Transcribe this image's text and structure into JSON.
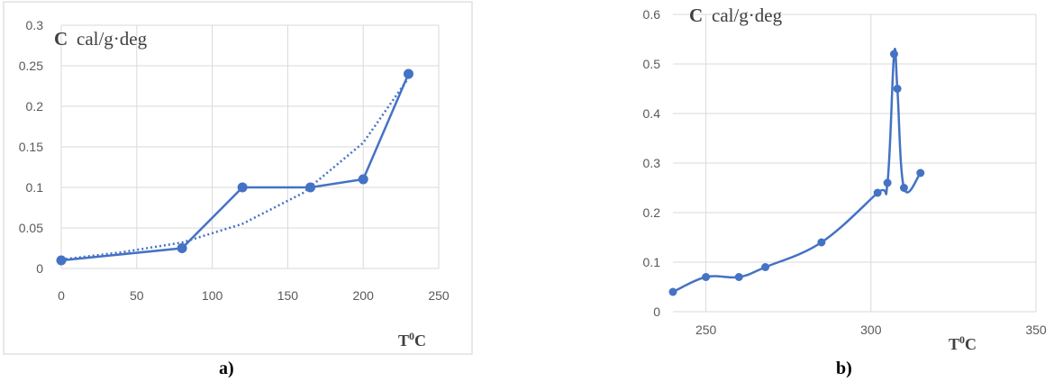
{
  "chart_data": [
    {
      "type": "line",
      "panel": "a)",
      "ylabel_symbol": "C",
      "ylabel_unit": "cal/g·deg",
      "xlabel_base": "T",
      "xlabel_sup": "0",
      "xlabel_unit": "C",
      "xlim": [
        0,
        250
      ],
      "ylim": [
        0,
        0.3
      ],
      "xticks": [
        "0",
        "50",
        "100",
        "150",
        "200",
        "250"
      ],
      "yticks": [
        "0",
        "0.05",
        "0.1",
        "0.15",
        "0.2",
        "0.25",
        "0.3"
      ],
      "grid": true,
      "series": [
        {
          "style": "solid-markers",
          "color": "#4472c4",
          "x": [
            0,
            80,
            120,
            165,
            200,
            230
          ],
          "y": [
            0.01,
            0.025,
            0.1,
            0.1,
            0.11,
            0.24
          ]
        },
        {
          "style": "dotted-trendline",
          "color": "#4472c4",
          "x": [
            0,
            40,
            80,
            120,
            160,
            200,
            230
          ],
          "y": [
            0.011,
            0.02,
            0.032,
            0.055,
            0.093,
            0.155,
            0.235
          ]
        }
      ]
    },
    {
      "type": "line",
      "panel": "b)",
      "ylabel_symbol": "C",
      "ylabel_unit": "cal/g·deg",
      "xlabel_base": "T",
      "xlabel_sup": "0",
      "xlabel_unit": "C",
      "xlim": [
        240,
        350
      ],
      "ylim": [
        0,
        0.6
      ],
      "xticks": [
        "250",
        "300",
        "350"
      ],
      "yticks": [
        "0",
        "0.1",
        "0.2",
        "0.3",
        "0.4",
        "0.5",
        "0.6"
      ],
      "grid": true,
      "series": [
        {
          "style": "smooth-markers",
          "color": "#4472c4",
          "x": [
            240,
            250,
            260,
            268,
            285,
            302,
            305,
            307,
            308,
            310,
            315
          ],
          "y": [
            0.04,
            0.07,
            0.07,
            0.09,
            0.14,
            0.24,
            0.26,
            0.52,
            0.45,
            0.25,
            0.28
          ]
        }
      ]
    }
  ]
}
